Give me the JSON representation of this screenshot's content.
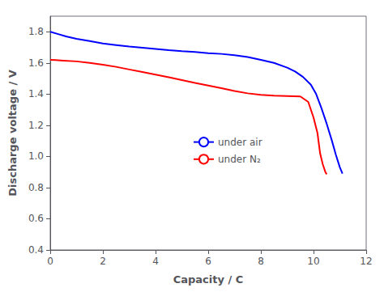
{
  "chart_data": {
    "type": "line",
    "x_label": "Capacity / C",
    "y_label": "Discharge voltage / V",
    "series": [
      {
        "name": "under air",
        "color": "#0000ff",
        "x": [
          0.0,
          0.3,
          0.6,
          1.0,
          1.5,
          2.0,
          2.5,
          3.0,
          3.5,
          4.0,
          4.5,
          5.0,
          5.5,
          6.0,
          6.5,
          7.0,
          7.5,
          8.0,
          8.5,
          9.0,
          9.3,
          9.6,
          9.9,
          10.1,
          10.3,
          10.5,
          10.7,
          10.85,
          11.0,
          11.1
        ],
        "values": [
          1.8,
          1.785,
          1.77,
          1.755,
          1.74,
          1.725,
          1.715,
          1.705,
          1.698,
          1.69,
          1.682,
          1.675,
          1.67,
          1.663,
          1.658,
          1.65,
          1.638,
          1.62,
          1.6,
          1.57,
          1.545,
          1.51,
          1.46,
          1.4,
          1.31,
          1.21,
          1.1,
          1.01,
          0.93,
          0.89
        ]
      },
      {
        "name": "under N₂",
        "color": "#ff0000",
        "x": [
          0.0,
          0.2,
          0.5,
          1.0,
          1.5,
          2.0,
          2.5,
          3.0,
          3.5,
          4.0,
          4.5,
          5.0,
          5.5,
          6.0,
          6.5,
          7.0,
          7.5,
          8.0,
          8.5,
          9.0,
          9.5,
          9.8,
          10.0,
          10.15,
          10.25,
          10.35,
          10.45,
          10.5
        ],
        "values": [
          1.62,
          1.618,
          1.615,
          1.61,
          1.6,
          1.588,
          1.575,
          1.558,
          1.542,
          1.525,
          1.508,
          1.49,
          1.472,
          1.455,
          1.438,
          1.42,
          1.405,
          1.395,
          1.39,
          1.388,
          1.385,
          1.35,
          1.25,
          1.15,
          1.02,
          0.95,
          0.9,
          0.885
        ]
      }
    ],
    "xlim": [
      0,
      12
    ],
    "ylim": [
      0.4,
      1.9
    ],
    "xticks": [
      0,
      2,
      4,
      6,
      8,
      10,
      12
    ],
    "yticks": [
      0.4,
      0.6,
      0.8,
      {
        "value": 1.0,
        "label": "1.0"
      },
      1.2,
      1.4,
      1.6,
      1.8
    ],
    "grid": false,
    "legend": "center"
  }
}
